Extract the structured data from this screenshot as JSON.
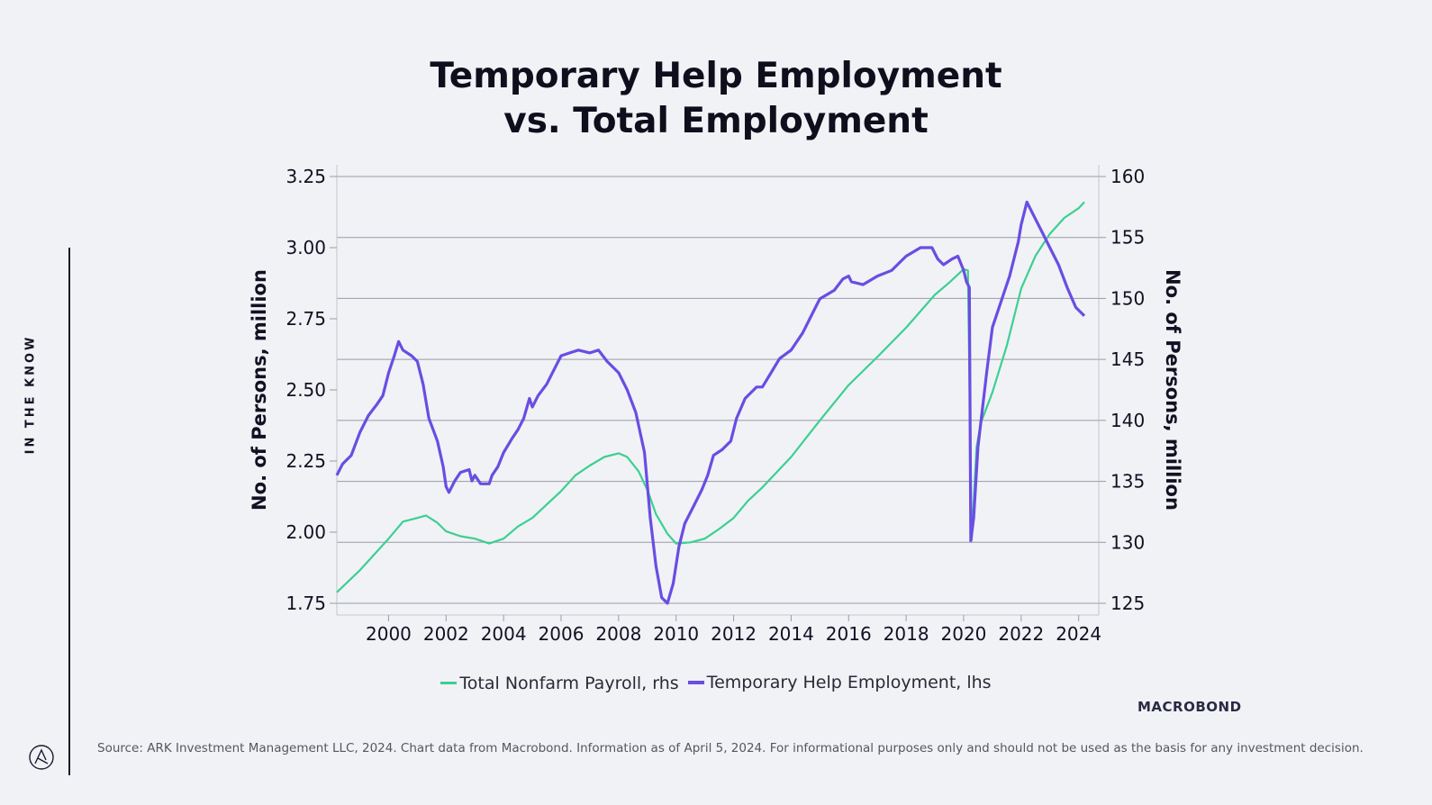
{
  "side_label": "IN THE KNOW",
  "brand_mark": "MACROBOND",
  "source": "Source: ARK Investment Management LLC, 2024. Chart data from Macrobond. Information as of April 5, 2024. For informational purposes only and should not be used as the basis for any investment decision.",
  "colors": {
    "background": "#f0f2f6",
    "payroll": "#3ccf91",
    "temp_help": "#6a4de2",
    "grid": "#9a9aa6",
    "text": "#111122"
  },
  "chart_data": {
    "type": "line",
    "title_lines": [
      "Temporary Help Employment",
      "vs. Total Employment"
    ],
    "ylabel_left": "No. of Persons, million",
    "ylabel_right": "No. of Persons, million",
    "ylim_left": [
      1.75,
      3.25
    ],
    "ylim_right": [
      125,
      160
    ],
    "yticks_left": [
      "1.75",
      "2.00",
      "2.25",
      "2.50",
      "2.75",
      "3.00",
      "3.25"
    ],
    "yticks_right": [
      "125",
      "130",
      "135",
      "140",
      "145",
      "150",
      "155",
      "160"
    ],
    "xlim": [
      1998.2,
      2024.7
    ],
    "xticks": [
      "2000",
      "2002",
      "2004",
      "2006",
      "2008",
      "2010",
      "2012",
      "2014",
      "2016",
      "2018",
      "2020",
      "2022",
      "2024"
    ],
    "grid": "horizontal",
    "legend_position": "bottom-center",
    "series": [
      {
        "name": "Total Nonfarm Payroll, rhs",
        "axis": "right",
        "color": "#3ccf91",
        "points": [
          [
            1998.2,
            125.9
          ],
          [
            1999.0,
            127.7
          ],
          [
            2000.0,
            130.3
          ],
          [
            2000.5,
            131.7
          ],
          [
            2001.0,
            132.0
          ],
          [
            2001.3,
            132.2
          ],
          [
            2001.7,
            131.6
          ],
          [
            2002.0,
            130.9
          ],
          [
            2002.5,
            130.5
          ],
          [
            2003.0,
            130.3
          ],
          [
            2003.5,
            129.9
          ],
          [
            2004.0,
            130.3
          ],
          [
            2004.5,
            131.3
          ],
          [
            2005.0,
            132.0
          ],
          [
            2005.5,
            133.1
          ],
          [
            2006.0,
            134.2
          ],
          [
            2006.5,
            135.5
          ],
          [
            2007.0,
            136.3
          ],
          [
            2007.5,
            137.0
          ],
          [
            2008.0,
            137.3
          ],
          [
            2008.3,
            137.0
          ],
          [
            2008.7,
            135.8
          ],
          [
            2009.0,
            134.3
          ],
          [
            2009.3,
            132.3
          ],
          [
            2009.7,
            130.7
          ],
          [
            2010.0,
            129.9
          ],
          [
            2010.5,
            130.0
          ],
          [
            2011.0,
            130.3
          ],
          [
            2011.5,
            131.1
          ],
          [
            2012.0,
            132.0
          ],
          [
            2012.5,
            133.4
          ],
          [
            2013.0,
            134.5
          ],
          [
            2014.0,
            137.0
          ],
          [
            2015.0,
            140.0
          ],
          [
            2016.0,
            142.9
          ],
          [
            2017.0,
            145.2
          ],
          [
            2018.0,
            147.6
          ],
          [
            2019.0,
            150.3
          ],
          [
            2019.5,
            151.3
          ],
          [
            2020.0,
            152.4
          ],
          [
            2020.15,
            152.3
          ],
          [
            2020.28,
            130.2
          ],
          [
            2020.45,
            137.8
          ],
          [
            2020.6,
            139.8
          ],
          [
            2021.0,
            142.3
          ],
          [
            2021.5,
            146.1
          ],
          [
            2022.0,
            150.8
          ],
          [
            2022.5,
            153.5
          ],
          [
            2023.0,
            155.3
          ],
          [
            2023.5,
            156.6
          ],
          [
            2024.0,
            157.4
          ],
          [
            2024.2,
            157.9
          ]
        ]
      },
      {
        "name": "Temporary Help Employment, lhs",
        "axis": "left",
        "color": "#6a4de2",
        "points": [
          [
            1998.2,
            2.2
          ],
          [
            1998.4,
            2.24
          ],
          [
            1998.7,
            2.27
          ],
          [
            1999.0,
            2.35
          ],
          [
            1999.3,
            2.41
          ],
          [
            1999.6,
            2.45
          ],
          [
            1999.8,
            2.48
          ],
          [
            2000.0,
            2.56
          ],
          [
            2000.2,
            2.62
          ],
          [
            2000.35,
            2.67
          ],
          [
            2000.5,
            2.64
          ],
          [
            2000.8,
            2.62
          ],
          [
            2001.0,
            2.6
          ],
          [
            2001.2,
            2.52
          ],
          [
            2001.4,
            2.4
          ],
          [
            2001.7,
            2.32
          ],
          [
            2001.9,
            2.23
          ],
          [
            2002.0,
            2.16
          ],
          [
            2002.1,
            2.14
          ],
          [
            2002.3,
            2.18
          ],
          [
            2002.5,
            2.21
          ],
          [
            2002.8,
            2.22
          ],
          [
            2002.9,
            2.18
          ],
          [
            2003.0,
            2.2
          ],
          [
            2003.2,
            2.17
          ],
          [
            2003.4,
            2.17
          ],
          [
            2003.5,
            2.17
          ],
          [
            2003.6,
            2.2
          ],
          [
            2003.8,
            2.23
          ],
          [
            2004.0,
            2.28
          ],
          [
            2004.3,
            2.33
          ],
          [
            2004.5,
            2.36
          ],
          [
            2004.7,
            2.4
          ],
          [
            2004.9,
            2.47
          ],
          [
            2005.0,
            2.44
          ],
          [
            2005.2,
            2.48
          ],
          [
            2005.5,
            2.52
          ],
          [
            2005.8,
            2.58
          ],
          [
            2006.0,
            2.62
          ],
          [
            2006.3,
            2.63
          ],
          [
            2006.6,
            2.64
          ],
          [
            2007.0,
            2.63
          ],
          [
            2007.3,
            2.64
          ],
          [
            2007.6,
            2.6
          ],
          [
            2008.0,
            2.56
          ],
          [
            2008.3,
            2.5
          ],
          [
            2008.6,
            2.42
          ],
          [
            2008.9,
            2.28
          ],
          [
            2009.1,
            2.05
          ],
          [
            2009.3,
            1.88
          ],
          [
            2009.5,
            1.77
          ],
          [
            2009.7,
            1.75
          ],
          [
            2009.9,
            1.82
          ],
          [
            2010.1,
            1.95
          ],
          [
            2010.3,
            2.03
          ],
          [
            2010.6,
            2.09
          ],
          [
            2010.9,
            2.15
          ],
          [
            2011.1,
            2.2
          ],
          [
            2011.3,
            2.27
          ],
          [
            2011.6,
            2.29
          ],
          [
            2011.9,
            2.32
          ],
          [
            2012.1,
            2.4
          ],
          [
            2012.4,
            2.47
          ],
          [
            2012.8,
            2.51
          ],
          [
            2013.0,
            2.51
          ],
          [
            2013.3,
            2.56
          ],
          [
            2013.6,
            2.61
          ],
          [
            2014.0,
            2.64
          ],
          [
            2014.4,
            2.7
          ],
          [
            2014.8,
            2.78
          ],
          [
            2015.0,
            2.82
          ],
          [
            2015.5,
            2.85
          ],
          [
            2015.8,
            2.89
          ],
          [
            2016.0,
            2.9
          ],
          [
            2016.1,
            2.88
          ],
          [
            2016.5,
            2.87
          ],
          [
            2017.0,
            2.9
          ],
          [
            2017.5,
            2.92
          ],
          [
            2017.8,
            2.95
          ],
          [
            2018.0,
            2.97
          ],
          [
            2018.5,
            3.0
          ],
          [
            2018.9,
            3.0
          ],
          [
            2019.1,
            2.96
          ],
          [
            2019.3,
            2.94
          ],
          [
            2019.6,
            2.96
          ],
          [
            2019.8,
            2.97
          ],
          [
            2020.0,
            2.92
          ],
          [
            2020.1,
            2.88
          ],
          [
            2020.2,
            2.86
          ],
          [
            2020.25,
            1.97
          ],
          [
            2020.35,
            2.05
          ],
          [
            2020.5,
            2.3
          ],
          [
            2020.8,
            2.56
          ],
          [
            2021.0,
            2.72
          ],
          [
            2021.2,
            2.78
          ],
          [
            2021.4,
            2.84
          ],
          [
            2021.6,
            2.9
          ],
          [
            2021.75,
            2.96
          ],
          [
            2021.9,
            3.02
          ],
          [
            2022.0,
            3.08
          ],
          [
            2022.2,
            3.16
          ],
          [
            2022.4,
            3.12
          ],
          [
            2022.7,
            3.06
          ],
          [
            2023.0,
            3.0
          ],
          [
            2023.3,
            2.94
          ],
          [
            2023.6,
            2.86
          ],
          [
            2023.9,
            2.79
          ],
          [
            2024.2,
            2.76
          ]
        ]
      }
    ]
  }
}
